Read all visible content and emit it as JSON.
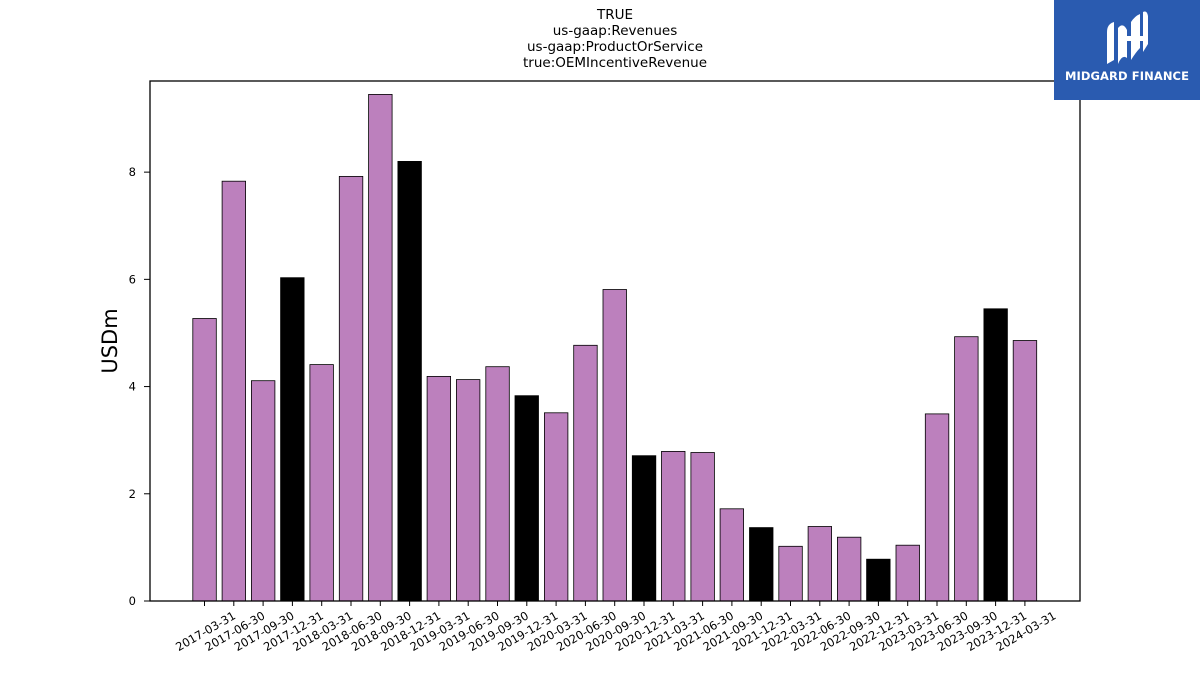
{
  "header": {
    "title_lines": [
      "TRUE",
      "us-gaap:Revenues",
      "us-gaap:ProductOrService",
      "true:OEMIncentiveRevenue"
    ]
  },
  "logo": {
    "text": "MIDGARD FINANCE",
    "background": "#2a5bb0",
    "icon": "midgard-logo-icon"
  },
  "chart_data": {
    "type": "bar",
    "ylabel": "USDm",
    "xlabel": "",
    "ylim": [
      0,
      9.7
    ],
    "yticks": [
      0,
      2,
      4,
      6,
      8
    ],
    "grid": false,
    "categories": [
      "2017-03-31",
      "2017-06-30",
      "2017-09-30",
      "2017-12-31",
      "2018-03-31",
      "2018-06-30",
      "2018-09-30",
      "2018-12-31",
      "2019-03-31",
      "2019-06-30",
      "2019-09-30",
      "2019-12-31",
      "2020-03-31",
      "2020-06-30",
      "2020-09-30",
      "2020-12-31",
      "2021-03-31",
      "2021-06-30",
      "2021-09-30",
      "2021-12-31",
      "2022-03-31",
      "2022-06-30",
      "2022-09-30",
      "2022-12-31",
      "2023-03-31",
      "2023-06-30",
      "2023-09-30",
      "2023-12-31",
      "2024-03-31"
    ],
    "values": [
      5.27,
      7.83,
      4.11,
      6.03,
      4.41,
      7.92,
      9.45,
      8.2,
      4.19,
      4.13,
      4.37,
      3.83,
      3.51,
      4.77,
      5.81,
      2.71,
      2.79,
      2.77,
      1.72,
      1.37,
      1.02,
      1.39,
      1.19,
      0.78,
      1.04,
      3.49,
      4.93,
      5.45,
      4.86
    ],
    "colors": {
      "quarter": "#bc80bd",
      "year_end": "#000000",
      "edge": "#000000"
    }
  }
}
